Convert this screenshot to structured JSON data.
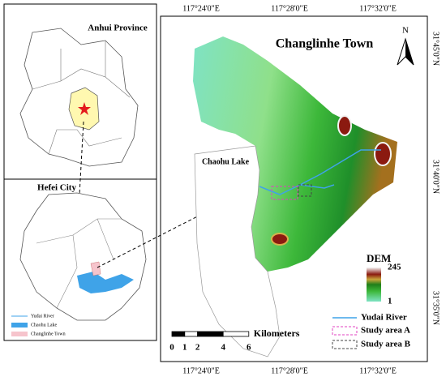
{
  "inset_province": {
    "title": "Anhui Province"
  },
  "inset_city": {
    "title": "Hefei City",
    "legend": [
      "Yudai River",
      "Chaohu Lake",
      "Changlinhe Town"
    ]
  },
  "main_map": {
    "title": "Changlinhe Town",
    "north": "N",
    "lake_label": "Chaohu Lake",
    "x_labels": [
      "117°24'0\"E",
      "117°28'0\"E",
      "117°32'0\"E"
    ],
    "y_labels": [
      "31°45'0\"N",
      "31°40'0\"N",
      "31°35'0\"N"
    ],
    "dem": {
      "title": "DEM",
      "max": 245,
      "min": 1
    },
    "legend": [
      "Yudai River",
      "Study area A",
      "Study area B"
    ],
    "scale_bar": {
      "ticks": [
        0,
        1,
        2,
        4,
        6
      ],
      "unit": "Kilometers"
    }
  }
}
